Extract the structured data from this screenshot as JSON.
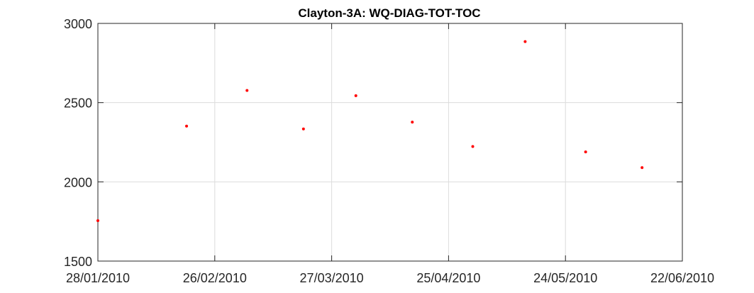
{
  "chart_data": {
    "type": "scatter",
    "title": "Clayton-3A: WQ-DIAG-TOT-TOC",
    "xlabel": "",
    "ylabel": "",
    "x_range": [
      "28/01/2010",
      "22/06/2010"
    ],
    "ylim": [
      1500,
      3000
    ],
    "x_ticks": [
      "28/01/2010",
      "26/02/2010",
      "27/03/2010",
      "25/04/2010",
      "24/05/2010",
      "22/06/2010"
    ],
    "y_ticks": [
      1500,
      2000,
      2500,
      3000
    ],
    "grid": true,
    "marker_color": "#ff0000",
    "points": [
      {
        "x": "28/01/2010",
        "y": 1755
      },
      {
        "x": "19/02/2010",
        "y": 2352
      },
      {
        "x": "06/03/2010",
        "y": 2577
      },
      {
        "x": "20/03/2010",
        "y": 2334
      },
      {
        "x": "02/04/2010",
        "y": 2544
      },
      {
        "x": "16/04/2010",
        "y": 2377
      },
      {
        "x": "01/05/2010",
        "y": 2223
      },
      {
        "x": "14/05/2010",
        "y": 2885
      },
      {
        "x": "29/05/2010",
        "y": 2189
      },
      {
        "x": "12/06/2010",
        "y": 2090
      }
    ]
  }
}
